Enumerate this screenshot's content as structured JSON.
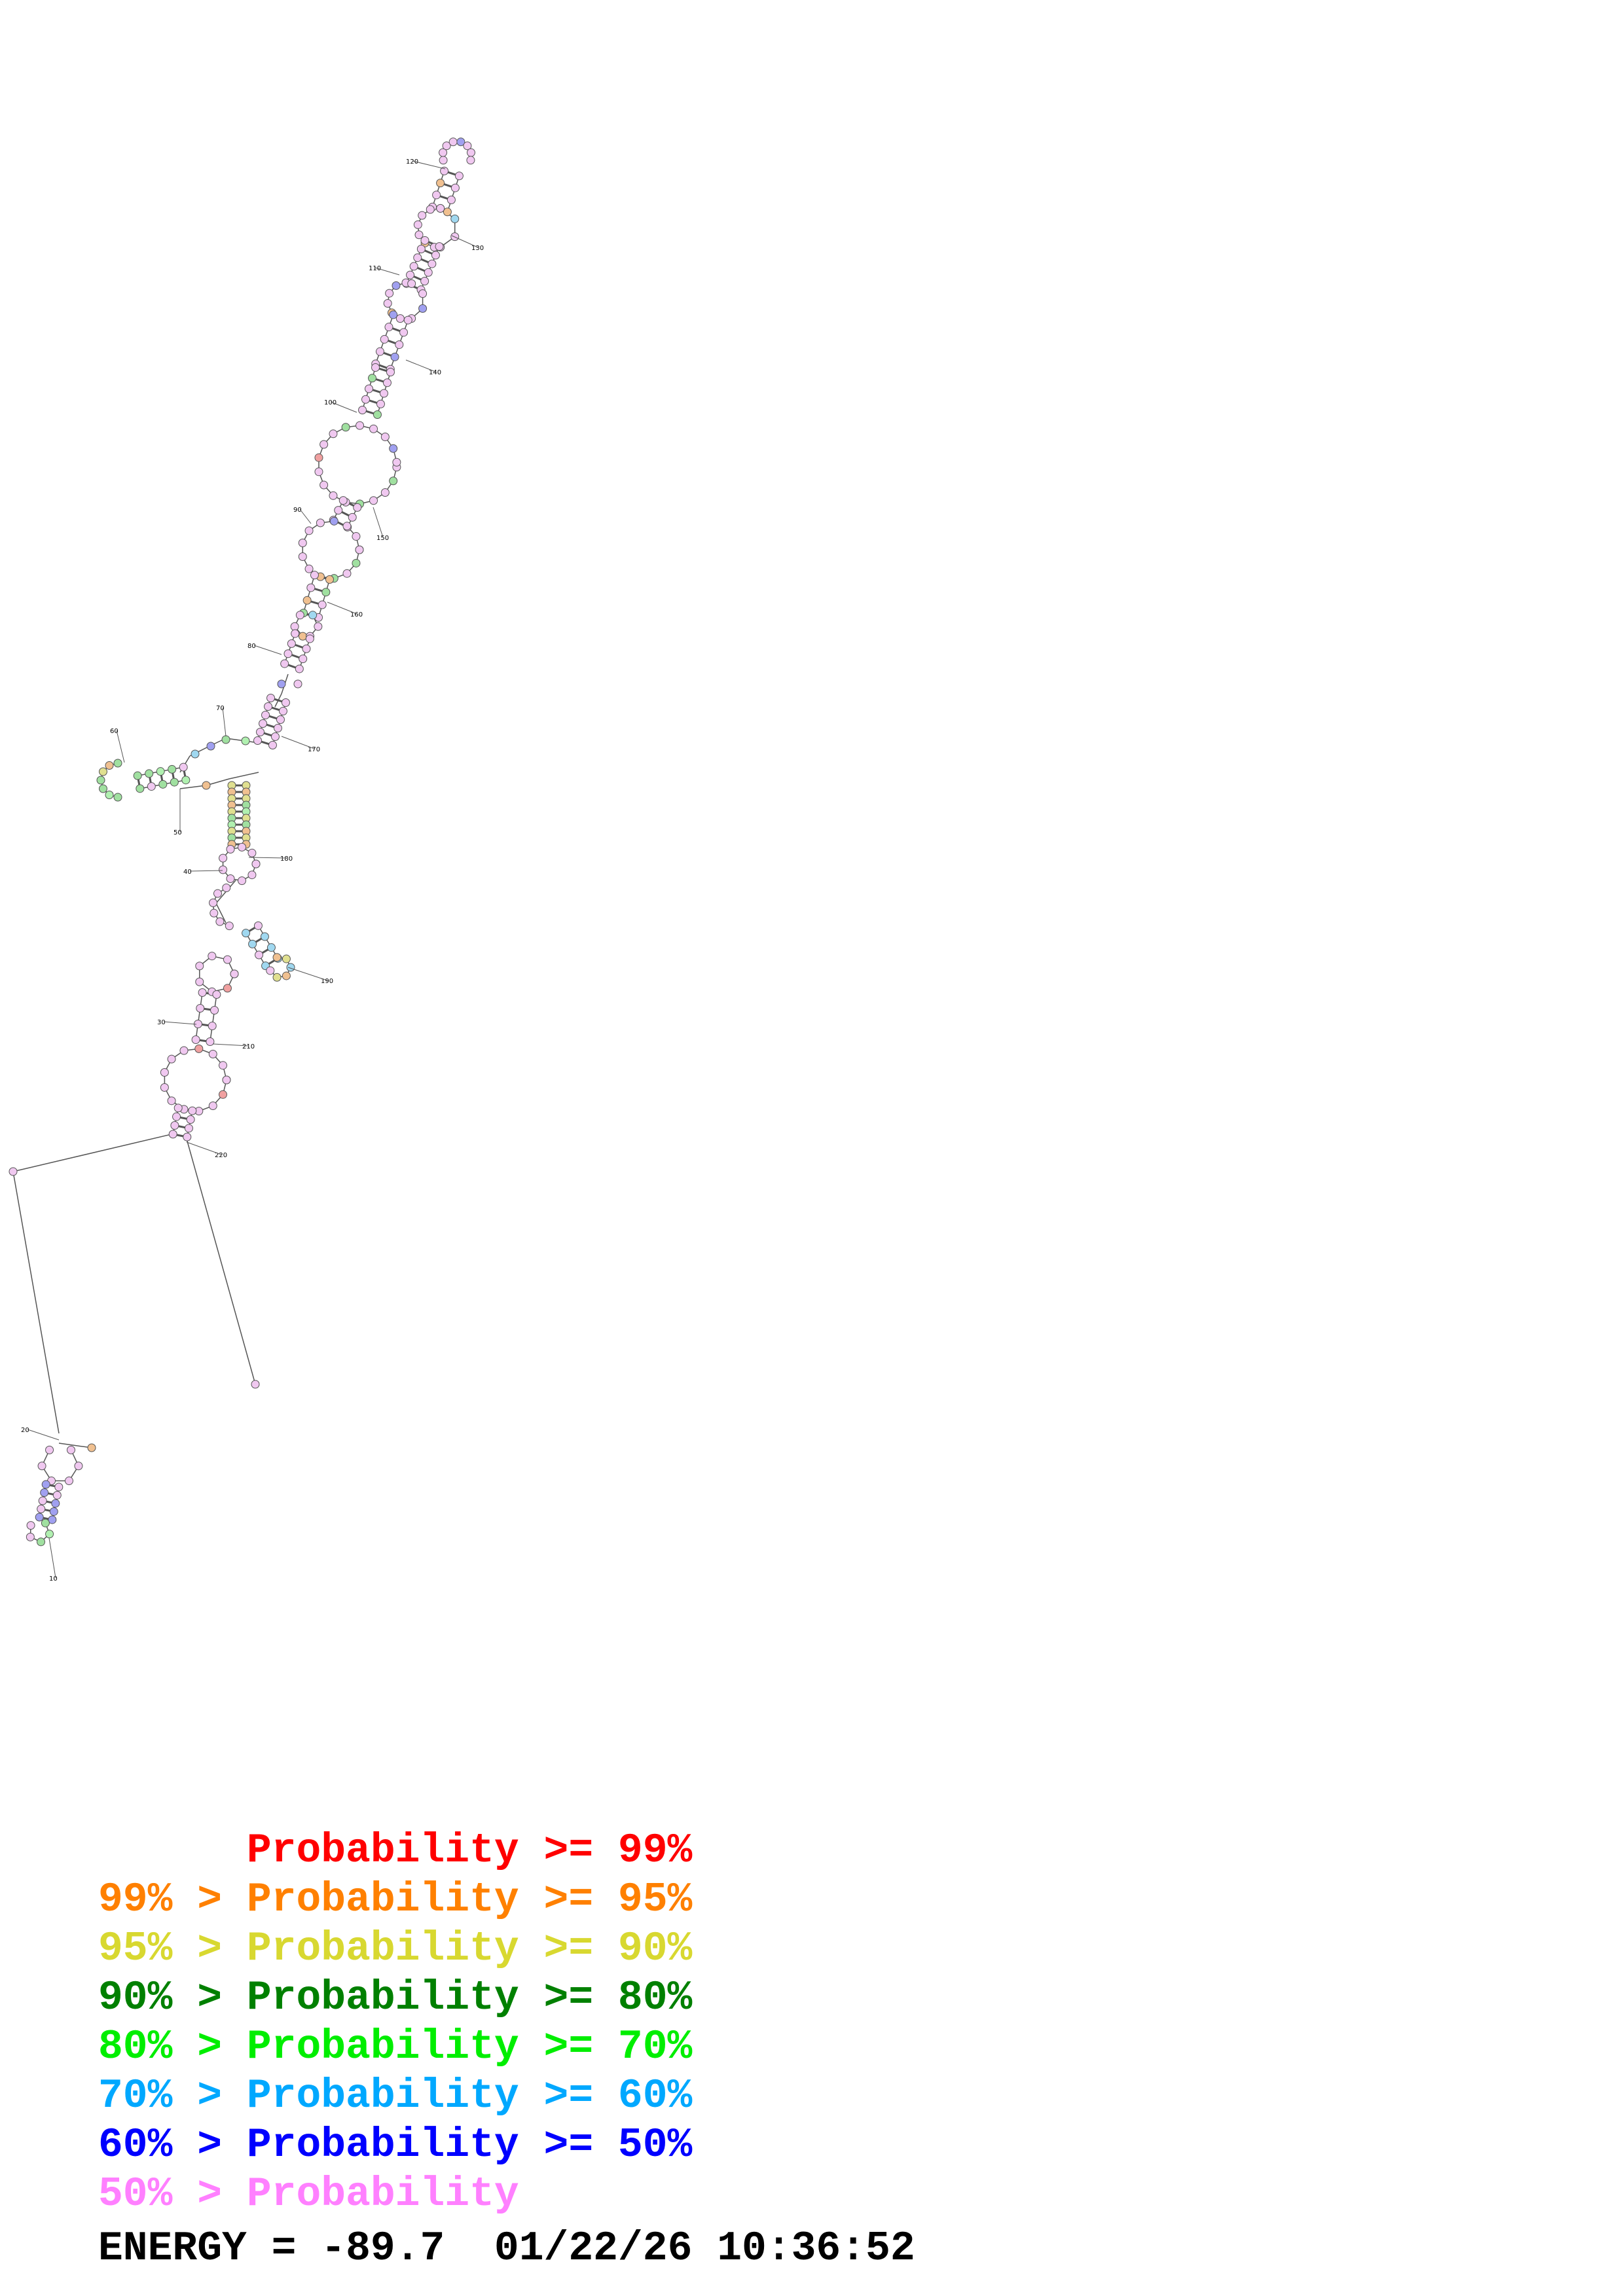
{
  "legend": [
    {
      "label": "      Probability >= 99%",
      "color": "#ff0000"
    },
    {
      "label": "99% > Probability >= 95%",
      "color": "#ff8000"
    },
    {
      "label": "95% > Probability >= 90%",
      "color": "#d8d830"
    },
    {
      "label": "90% > Probability >= 80%",
      "color": "#008000"
    },
    {
      "label": "80% > Probability >= 70%",
      "color": "#00ee00"
    },
    {
      "label": "70% > Probability >= 60%",
      "color": "#00a8ff"
    },
    {
      "label": "60% > Probability >= 50%",
      "color": "#0000ff"
    },
    {
      "label": "50% > Probability",
      "color": "#ff80ff"
    }
  ],
  "energy": {
    "label": "ENERGY",
    "value": "-89.7",
    "date": "01/22/26",
    "time": "10:36:52"
  },
  "position_labels": [
    "10",
    "20",
    "30",
    "40",
    "50",
    "60",
    "70",
    "80",
    "90",
    "100",
    "110",
    "120",
    "130",
    "140",
    "150",
    "160",
    "170",
    "180",
    "190",
    "210",
    "220"
  ],
  "node_colors": {
    "pink": "#f0c8f0",
    "orange": "#f0c090",
    "yellow": "#e0e090",
    "green": "#a0e0a0",
    "lightgreen": "#b0f0b0",
    "cyan": "#a0d8f0",
    "blue": "#a0a0f0",
    "red": "#f0a0a0"
  }
}
